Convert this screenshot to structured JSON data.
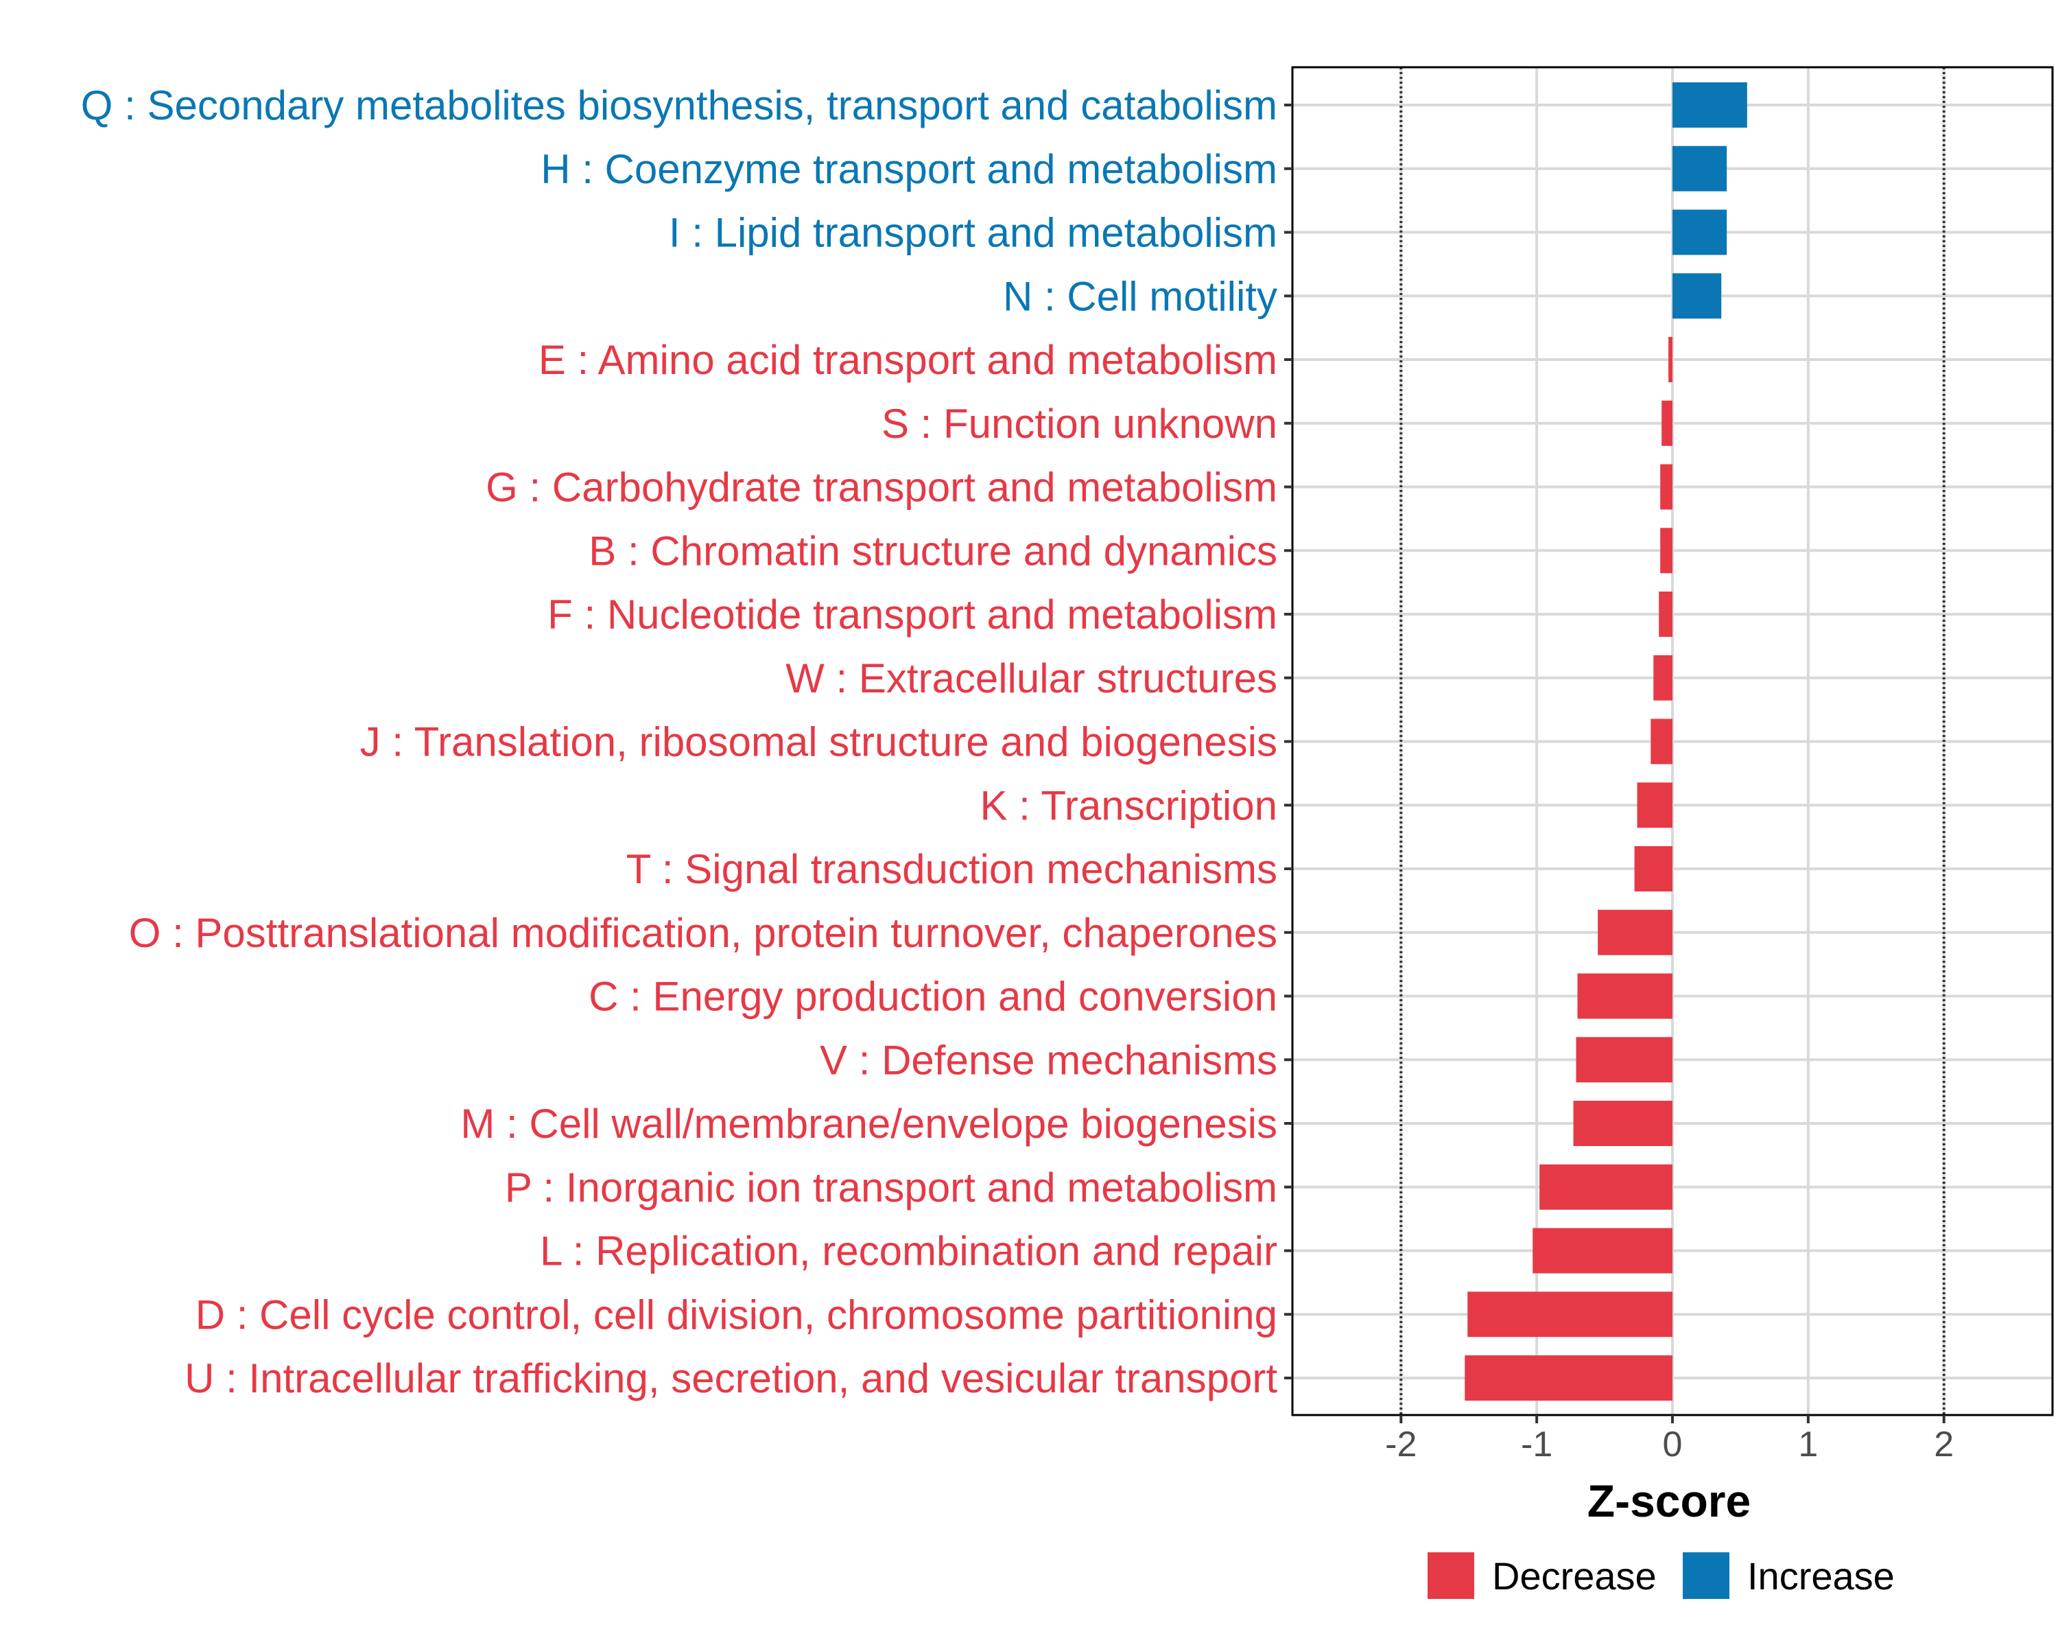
{
  "chart_data": {
    "type": "bar",
    "orientation": "horizontal",
    "title": "",
    "xlabel": "Z-score",
    "ylabel": "",
    "xlim": [
      -2.8,
      2.8
    ],
    "xticks": [
      -2,
      -1,
      0,
      1,
      2
    ],
    "xtick_labels": [
      "-2",
      "-1",
      "0",
      "1",
      "2"
    ],
    "reference_lines": [
      -2,
      2
    ],
    "grid": true,
    "legend_position": "bottom",
    "categories": [
      "Q : Secondary metabolites biosynthesis, transport and catabolism",
      "H : Coenzyme transport and metabolism",
      "I : Lipid transport and metabolism",
      "N : Cell motility",
      "E : Amino acid transport and metabolism",
      "S : Function unknown",
      "G : Carbohydrate transport and metabolism",
      "B : Chromatin structure and dynamics",
      "F : Nucleotide transport and metabolism",
      "W : Extracellular structures",
      "J : Translation, ribosomal structure and biogenesis",
      "K : Transcription",
      "T : Signal transduction mechanisms",
      "O : Posttranslational modification, protein turnover, chaperones",
      "C : Energy production and conversion",
      "V : Defense mechanisms",
      "M : Cell wall/membrane/envelope biogenesis",
      "P : Inorganic ion transport and metabolism",
      "L : Replication, recombination and repair",
      "D : Cell cycle control, cell division, chromosome partitioning",
      "U : Intracellular trafficking, secretion, and vesicular transport"
    ],
    "values": [
      0.55,
      0.4,
      0.4,
      0.36,
      -0.03,
      -0.08,
      -0.09,
      -0.09,
      -0.1,
      -0.14,
      -0.16,
      -0.26,
      -0.28,
      -0.55,
      -0.7,
      -0.71,
      -0.73,
      -0.98,
      -1.03,
      -1.51,
      -1.53
    ],
    "groups": [
      "Increase",
      "Increase",
      "Increase",
      "Increase",
      "Decrease",
      "Decrease",
      "Decrease",
      "Decrease",
      "Decrease",
      "Decrease",
      "Decrease",
      "Decrease",
      "Decrease",
      "Decrease",
      "Decrease",
      "Decrease",
      "Decrease",
      "Decrease",
      "Decrease",
      "Decrease",
      "Decrease"
    ],
    "legend": [
      {
        "name": "Decrease",
        "color": "#e63946"
      },
      {
        "name": "Increase",
        "color": "#0a77b4"
      }
    ]
  }
}
